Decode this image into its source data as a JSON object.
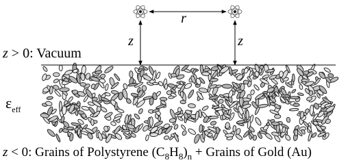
{
  "diagram": {
    "separation_label": "r",
    "height_labels": [
      "z",
      "z"
    ],
    "vacuum_label": [
      "z",
      " > 0: Vacuum"
    ],
    "medium_label": {
      "symbol": "ε",
      "subscript": "eff"
    },
    "caption": [
      "z",
      " < 0: Grains of Polystyrene (C",
      "8",
      "H",
      "8",
      ")",
      "n",
      " + Grains of Gold (Au)"
    ]
  }
}
